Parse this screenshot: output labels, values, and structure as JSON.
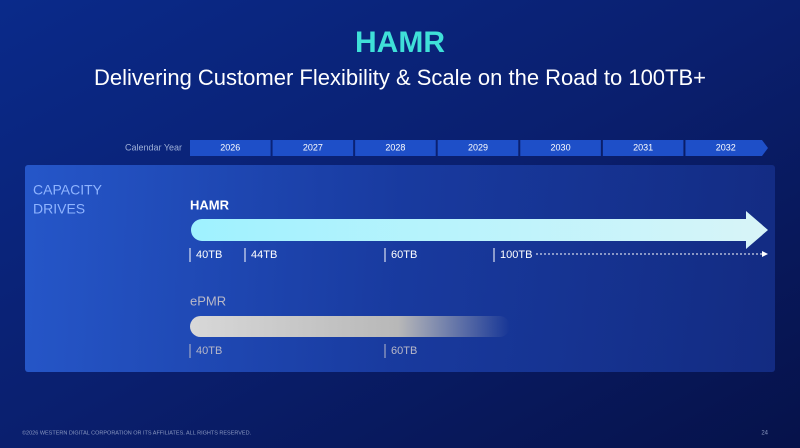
{
  "header": {
    "title": "HAMR",
    "subtitle": "Delivering Customer Flexibility & Scale on the Road to 100TB+"
  },
  "timeline": {
    "label": "Calendar Year",
    "years": [
      "2026",
      "2027",
      "2028",
      "2029",
      "2030",
      "2031",
      "2032"
    ]
  },
  "panel": {
    "label": [
      "CAPACITY",
      "DRIVES"
    ],
    "rows": [
      {
        "name": "HAMR",
        "milestones": [
          "40TB",
          "44TB",
          "60TB",
          "100TB"
        ]
      },
      {
        "name": "ePMR",
        "milestones": [
          "40TB",
          "60TB"
        ]
      }
    ]
  },
  "footer": {
    "copyright": "©2026 WESTERN DIGITAL CORPORATION OR ITS AFFILIATES. ALL RIGHTS RESERVED.",
    "page": "24"
  }
}
